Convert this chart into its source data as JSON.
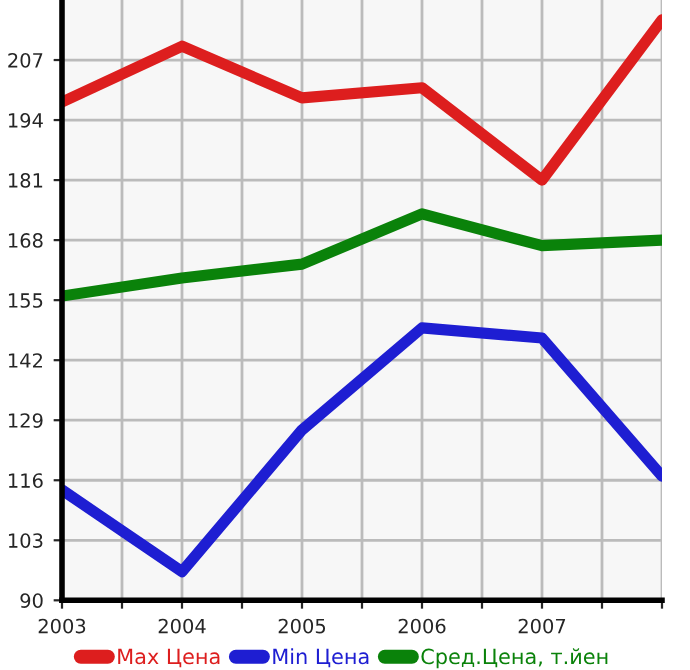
{
  "chart_data": {
    "type": "line",
    "x": [
      2003,
      2004,
      2005,
      2006,
      2007,
      2008
    ],
    "series": [
      {
        "name": "Max Цена",
        "color": "#dd1e1e",
        "values": [
          197.9,
          210,
          198.8,
          201,
          181,
          215.7
        ]
      },
      {
        "name": "Min Цена",
        "color": "#1e1ed2",
        "values": [
          113.9,
          96.2,
          126.9,
          149,
          146.8,
          116.9
        ]
      },
      {
        "name": "Сред.Цена, т.йен",
        "color": "#0a820a",
        "values": [
          155.9,
          159.8,
          162.8,
          173.7,
          166.8,
          168
        ]
      }
    ],
    "xlim": [
      2003,
      2008
    ],
    "xticks": [
      2003,
      {
        "value": 2003.5,
        "label": null
      },
      2004,
      {
        "value": 2004.5,
        "label": null
      },
      2005,
      {
        "value": 2005.5,
        "label": null
      },
      2006,
      {
        "value": 2006.5,
        "label": null
      },
      2007,
      {
        "value": 2007.5,
        "label": null
      },
      {
        "value": 2008,
        "label": null
      }
    ],
    "ylim": [
      90,
      220
    ],
    "yticks": [
      90,
      103,
      116,
      129,
      142,
      155,
      168,
      181,
      194,
      207
    ],
    "grid": true,
    "legend": "bottom",
    "line_style": "solid",
    "marker": "none"
  }
}
